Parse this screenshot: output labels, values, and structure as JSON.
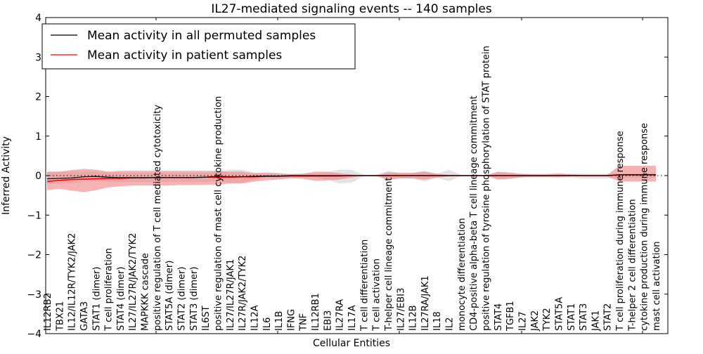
{
  "chart_data": {
    "type": "line",
    "title": "IL27-mediated signaling events -- 140 samples",
    "xlabel": "Cellular Entities",
    "ylabel": "Inferred Activity",
    "ylim": [
      -4,
      4
    ],
    "yticks": [
      -4,
      -3,
      -2,
      -1,
      0,
      1,
      2,
      3,
      4
    ],
    "ytick_labels": [
      "−4",
      "−3",
      "−2",
      "−1",
      "0",
      "1",
      "2",
      "3",
      "4"
    ],
    "legend_position": "top-left",
    "categories": [
      "IL12RB2",
      "TBX21",
      "IL12/IL12R/TYK2/JAK2",
      "GATA3",
      "STAT1 (dimer)",
      "T cell proliferation",
      "STAT4 (dimer)",
      "IL27/IL27R/JAK2/TYK2",
      "MAPKKK cascade",
      "positive regulation of T cell mediated cytotoxicity",
      "STAT5A (dimer)",
      "STAT2 (dimer)",
      "STAT3 (dimer)",
      "IL6ST",
      "positive regulation of mast cell cytokine production",
      "IL27/IL27R/JAK1",
      "IL27R/JAK2/TYK2",
      "IL12A",
      "IL6",
      "IL1B",
      "IFNG",
      "TNF",
      "IL12RB1",
      "EBI3",
      "IL27RA",
      "IL17A",
      "T cell differentiation",
      "T cell activation",
      "T-helper cell lineage commitment",
      "IL27/EBI3",
      "IL12B",
      "IL27RA/JAK1",
      "IL18",
      "IL2",
      "monocyte differentiation",
      "CD4-positive alpha-beta T cell lineage commitment",
      "positive regulation of tyrosine phosphorylation of STAT protein",
      "STAT4",
      "TGFB1",
      "IL27",
      "JAK2",
      "TYK2",
      "STAT5A",
      "STAT1",
      "STAT3",
      "JAK1",
      "STAT2",
      "T cell proliferation during immune response",
      "T-helper 2 cell differentiation",
      "cytokine production during immune response",
      "mast cell activation"
    ],
    "series": [
      {
        "name": "Mean activity in all permuted samples",
        "color": "#000000",
        "band_color": "#cccccc",
        "values": [
          -0.08,
          -0.07,
          -0.06,
          -0.03,
          -0.02,
          -0.04,
          -0.05,
          -0.05,
          -0.05,
          -0.05,
          -0.05,
          -0.05,
          -0.05,
          -0.04,
          -0.02,
          -0.03,
          -0.03,
          -0.02,
          -0.01,
          -0.01,
          0,
          0,
          0,
          0,
          0,
          0,
          0,
          0,
          0,
          0,
          0,
          0,
          0,
          0,
          0,
          0,
          0,
          0,
          0,
          0,
          0,
          0,
          0,
          0,
          0,
          0,
          0,
          0.02,
          0.02,
          0.02,
          0.02
        ],
        "band_upper": [
          0.1,
          0.1,
          0.1,
          0.1,
          0.1,
          0.08,
          0.08,
          0.08,
          0.08,
          0.08,
          0.08,
          0.08,
          0.08,
          0.08,
          0.1,
          0.15,
          0.15,
          0.08,
          0.05,
          0.05,
          0.04,
          0.05,
          0.06,
          0.08,
          0.15,
          0.15,
          0.02,
          0.02,
          0.12,
          0.07,
          0.07,
          0.12,
          0.05,
          0.15,
          0.02,
          0.02,
          0.02,
          0.07,
          0.07,
          0.05,
          0.05,
          0.05,
          0.06,
          0.05,
          0.05,
          0.05,
          0.05,
          0.06,
          0.06,
          0.06,
          0.06
        ],
        "band_lower": [
          -0.2,
          -0.2,
          -0.2,
          -0.15,
          -0.14,
          -0.15,
          -0.16,
          -0.16,
          -0.16,
          -0.16,
          -0.16,
          -0.16,
          -0.16,
          -0.16,
          -0.14,
          -0.18,
          -0.18,
          -0.1,
          -0.06,
          -0.06,
          -0.05,
          -0.06,
          -0.06,
          -0.1,
          -0.2,
          -0.18,
          -0.02,
          -0.02,
          -0.12,
          -0.07,
          -0.07,
          -0.15,
          -0.05,
          -0.14,
          -0.02,
          -0.02,
          -0.02,
          -0.08,
          -0.07,
          -0.05,
          -0.05,
          -0.05,
          -0.06,
          -0.05,
          -0.07,
          -0.07,
          -0.07,
          -0.06,
          -0.06,
          -0.06,
          -0.06
        ]
      },
      {
        "name": "Mean activity in patient samples",
        "color": "#ff0000",
        "band_color": "#f08080",
        "values": [
          -0.15,
          -0.12,
          -0.1,
          -0.09,
          -0.08,
          -0.07,
          -0.07,
          -0.06,
          -0.06,
          -0.05,
          -0.05,
          -0.05,
          -0.05,
          -0.04,
          -0.04,
          -0.04,
          -0.03,
          -0.03,
          -0.02,
          -0.02,
          -0.01,
          -0.01,
          -0.01,
          -0.01,
          -0.01,
          0,
          0,
          0,
          0,
          0,
          0,
          0,
          0,
          0,
          0,
          0,
          0,
          0,
          0,
          0,
          0,
          0,
          0,
          0,
          0,
          0,
          0,
          0.02,
          0.02,
          0.02,
          0.02
        ],
        "band_upper": [
          0.1,
          0.1,
          0.14,
          0.17,
          0.15,
          0.1,
          0.12,
          0.12,
          0.12,
          0.12,
          0.12,
          0.12,
          0.12,
          0.12,
          0.12,
          0.1,
          0.1,
          0.06,
          0.08,
          0.06,
          0.04,
          0.05,
          0.1,
          0.1,
          0.06,
          0.03,
          0,
          0,
          0.08,
          0.07,
          0.07,
          0.1,
          0.05,
          0.02,
          0,
          0,
          0,
          0.1,
          0.08,
          0.04,
          0.03,
          0.03,
          0.05,
          0.03,
          0.02,
          0.02,
          0.02,
          0.25,
          0.25,
          0.25,
          0.25
        ],
        "band_lower": [
          -0.37,
          -0.33,
          -0.38,
          -0.42,
          -0.37,
          -0.3,
          -0.27,
          -0.25,
          -0.25,
          -0.25,
          -0.25,
          -0.24,
          -0.24,
          -0.23,
          -0.23,
          -0.2,
          -0.2,
          -0.15,
          -0.12,
          -0.1,
          -0.07,
          -0.08,
          -0.13,
          -0.12,
          -0.1,
          -0.05,
          0,
          0,
          -0.1,
          -0.07,
          -0.07,
          -0.1,
          -0.05,
          -0.02,
          0,
          0,
          0,
          -0.1,
          -0.08,
          -0.04,
          -0.03,
          -0.03,
          -0.03,
          -0.02,
          -0.02,
          -0.02,
          -0.02,
          -0.15,
          -0.15,
          -0.15,
          -0.15
        ]
      }
    ],
    "reference_line": 0
  }
}
